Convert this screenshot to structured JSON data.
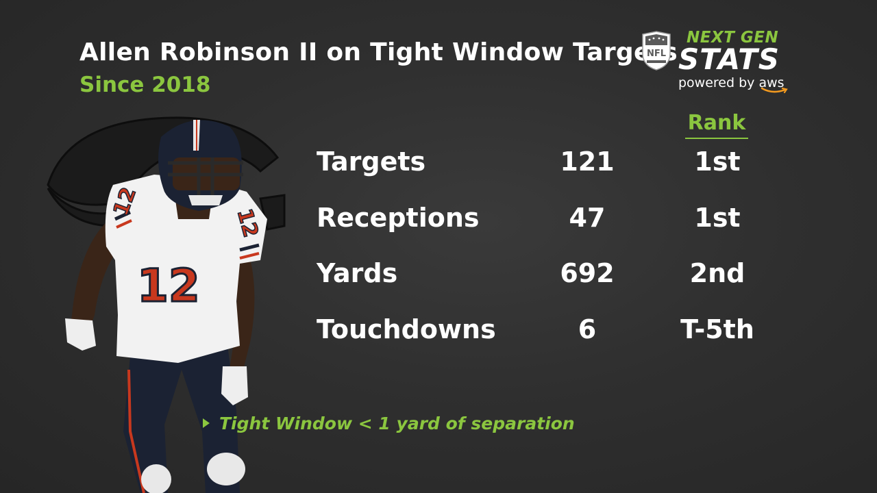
{
  "header": {
    "title": "Allen Robinson II on Tight Window Targets",
    "subtitle": "Since 2018"
  },
  "logo": {
    "next_gen": "NEXT GEN",
    "stats": "STATS",
    "powered_by": "powered by",
    "aws": "aws",
    "nfl": "NFL"
  },
  "player": {
    "jersey_number": "12"
  },
  "table": {
    "rank_header": "Rank",
    "rows": [
      {
        "label": "Targets",
        "value": "121",
        "rank": "1st"
      },
      {
        "label": "Receptions",
        "value": "47",
        "rank": "1st"
      },
      {
        "label": "Yards",
        "value": "692",
        "rank": "2nd"
      },
      {
        "label": "Touchdowns",
        "value": "6",
        "rank": "T-5th"
      }
    ]
  },
  "footnote": {
    "text": "Tight Window < 1 yard of separation"
  },
  "colors": {
    "accent": "#8bc63f",
    "background": "#2e2e2e",
    "text": "#ffffff",
    "jersey_white": "#f2f2f2",
    "jersey_navy": "#1b2233",
    "jersey_orange": "#c8381e"
  }
}
